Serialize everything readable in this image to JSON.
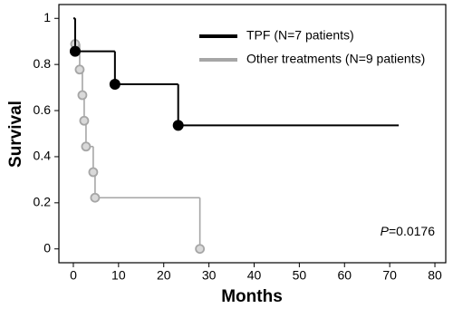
{
  "chart_data": {
    "type": "step",
    "x_label": "Months",
    "y_label": "Survival",
    "xlim": [
      -3.2,
      82.4
    ],
    "ylim": [
      -0.06,
      1.06
    ],
    "xticks": [
      0,
      10,
      20,
      30,
      40,
      50,
      60,
      70,
      80
    ],
    "yticks": [
      0,
      0.2,
      0.4,
      0.6,
      0.8,
      1
    ],
    "legend": "upper right",
    "annotation": {
      "italic": "P",
      "text": "=0.0176"
    },
    "series": [
      {
        "name": "TPF (N=7 patients)",
        "color": "#000000",
        "x": [
          0,
          0.4,
          9.2,
          23.2
        ],
        "values": [
          1,
          0.857,
          0.714,
          0.536
        ],
        "follow_up_end": 72
      },
      {
        "name": "Other treatments (N=9 patients)",
        "color": "#a6a6a6",
        "x": [
          0,
          0.4,
          1.4,
          2,
          2.4,
          2.8,
          4.4,
          4.8,
          28
        ],
        "values": [
          1,
          0.889,
          0.778,
          0.667,
          0.556,
          0.444,
          0.333,
          0.222,
          0
        ]
      }
    ]
  }
}
